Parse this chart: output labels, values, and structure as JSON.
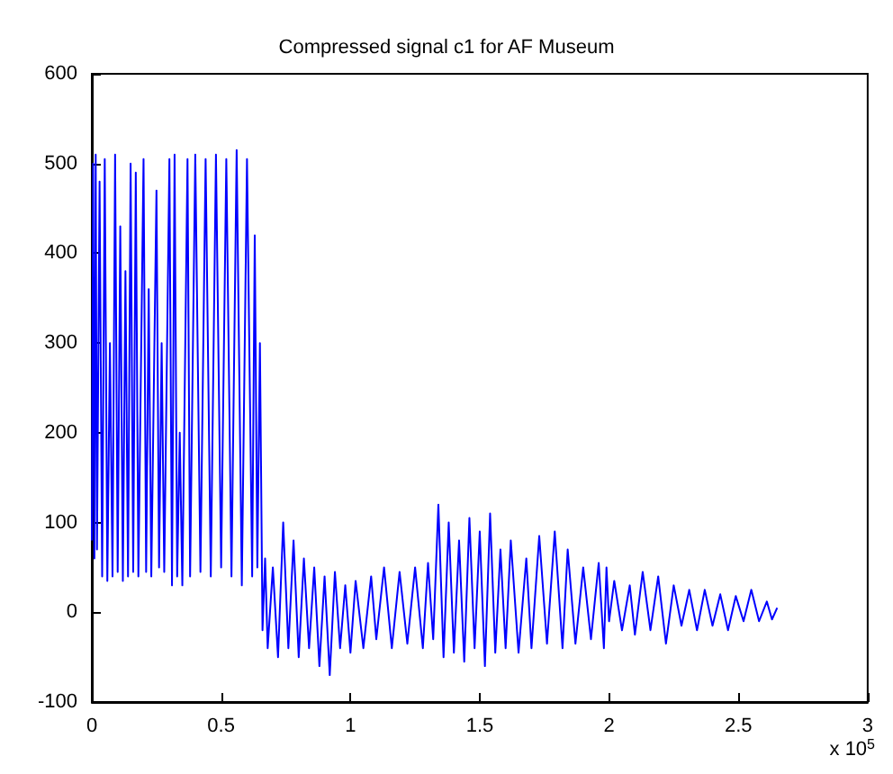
{
  "chart_data": {
    "type": "line",
    "title": "Compressed signal c1 for AF Museum",
    "annotations": [
      "x 10$^{5}$"
    ],
    "xlim": [
      0,
      3
    ],
    "xticks": [
      0,
      0.5,
      1,
      1.5,
      2,
      2.5,
      3
    ],
    "ylim": [
      -100,
      600
    ],
    "yticks": [
      -100,
      0,
      100,
      200,
      300,
      400,
      500,
      600
    ],
    "grid": false,
    "marker": "none",
    "line_style": "solid",
    "series": [
      {
        "color": "#0000ff",
        "x": [
          0,
          0.005,
          0.01,
          0.015,
          0.02,
          0.03,
          0.04,
          0.05,
          0.06,
          0.07,
          0.08,
          0.09,
          0.1,
          0.11,
          0.12,
          0.13,
          0.14,
          0.15,
          0.16,
          0.17,
          0.18,
          0.2,
          0.21,
          0.22,
          0.23,
          0.25,
          0.26,
          0.27,
          0.28,
          0.3,
          0.31,
          0.32,
          0.33,
          0.34,
          0.35,
          0.37,
          0.38,
          0.4,
          0.42,
          0.44,
          0.46,
          0.48,
          0.5,
          0.52,
          0.54,
          0.56,
          0.58,
          0.6,
          0.62,
          0.63,
          0.64,
          0.65,
          0.66,
          0.67,
          0.68,
          0.7,
          0.72,
          0.74,
          0.76,
          0.78,
          0.8,
          0.82,
          0.84,
          0.86,
          0.88,
          0.9,
          0.92,
          0.94,
          0.96,
          0.98,
          1,
          1.02,
          1.05,
          1.08,
          1.1,
          1.13,
          1.16,
          1.19,
          1.22,
          1.25,
          1.28,
          1.3,
          1.32,
          1.34,
          1.36,
          1.38,
          1.4,
          1.42,
          1.44,
          1.46,
          1.48,
          1.5,
          1.52,
          1.54,
          1.56,
          1.58,
          1.6,
          1.62,
          1.65,
          1.68,
          1.7,
          1.73,
          1.76,
          1.79,
          1.82,
          1.84,
          1.87,
          1.9,
          1.93,
          1.96,
          1.98,
          1.99,
          2,
          2.02,
          2.05,
          2.08,
          2.1,
          2.13,
          2.16,
          2.19,
          2.22,
          2.25,
          2.28,
          2.31,
          2.34,
          2.37,
          2.4,
          2.43,
          2.46,
          2.49,
          2.52,
          2.55,
          2.58,
          2.61,
          2.63,
          2.65
        ],
        "values": [
          80,
          500,
          60,
          510,
          70,
          480,
          40,
          505,
          35,
          300,
          40,
          510,
          45,
          430,
          35,
          380,
          40,
          500,
          45,
          490,
          40,
          505,
          45,
          360,
          40,
          470,
          50,
          300,
          45,
          505,
          30,
          510,
          40,
          200,
          30,
          505,
          40,
          510,
          45,
          505,
          40,
          510,
          50,
          505,
          40,
          515,
          30,
          505,
          40,
          420,
          50,
          300,
          -20,
          60,
          -40,
          50,
          -50,
          100,
          -40,
          80,
          -50,
          60,
          -40,
          50,
          -60,
          40,
          -70,
          45,
          -40,
          30,
          -45,
          35,
          -40,
          40,
          -30,
          50,
          -40,
          45,
          -35,
          50,
          -40,
          55,
          -30,
          120,
          -50,
          100,
          -45,
          80,
          -55,
          105,
          -40,
          90,
          -60,
          110,
          -45,
          70,
          -40,
          80,
          -45,
          60,
          -40,
          85,
          -35,
          90,
          -40,
          70,
          -35,
          50,
          -30,
          55,
          -40,
          50,
          -10,
          35,
          -20,
          30,
          -25,
          45,
          -20,
          40,
          -35,
          30,
          -15,
          25,
          -20,
          25,
          -15,
          20,
          -20,
          18,
          -10,
          25,
          -10,
          12,
          -8,
          5
        ]
      }
    ]
  }
}
